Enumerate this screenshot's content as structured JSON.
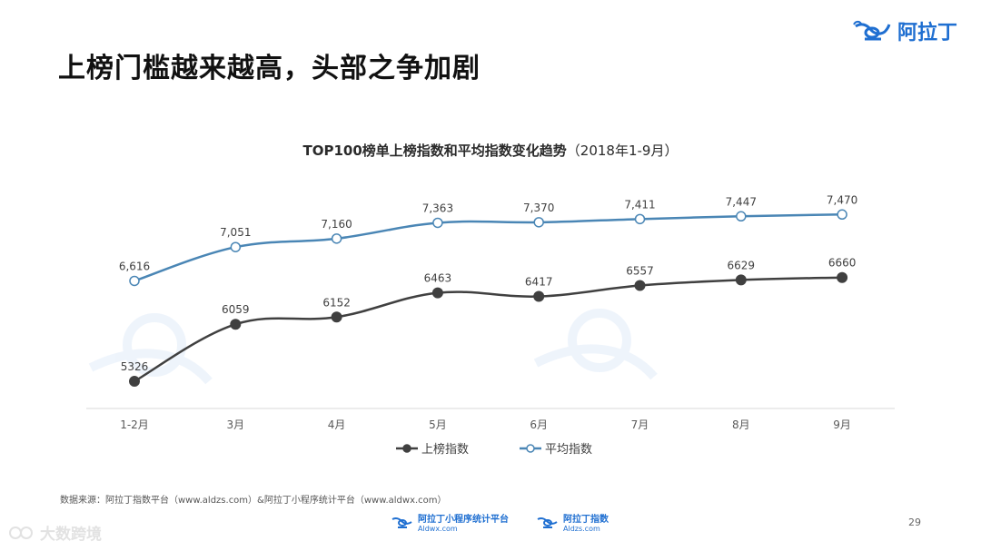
{
  "slide": {
    "title": "上榜门槛越来越高，头部之争加剧",
    "brand": "阿拉丁",
    "page_number": "29",
    "source": "数据来源：阿拉丁指数平台（www.aldzs.com）&阿拉丁小程序统计平台（www.aldwx.com）",
    "footer_logos": [
      {
        "name": "阿拉丁小程序统计平台",
        "sub": "Aldwx.com"
      },
      {
        "name": "阿拉丁指数",
        "sub": "Aldzs.com"
      }
    ],
    "corner_watermark": "大数跨境"
  },
  "chart_data": {
    "type": "line",
    "title": "TOP100榜单上榜指数和平均指数变化趋势",
    "subtitle": "（2018年1-9月）",
    "categories": [
      "1-2月",
      "3月",
      "4月",
      "5月",
      "6月",
      "7月",
      "8月",
      "9月"
    ],
    "series": [
      {
        "name": "平均指数",
        "values": [
          6616,
          7051,
          7160,
          7363,
          7370,
          7411,
          7447,
          7470
        ],
        "labels": [
          "6,616",
          "7,051",
          "7,160",
          "7,363",
          "7,370",
          "7,411",
          "7,447",
          "7,470"
        ],
        "color": "#4a86b5",
        "marker": "open-circle"
      },
      {
        "name": "上榜指数",
        "values": [
          5326,
          6059,
          6152,
          6463,
          6417,
          6557,
          6629,
          6660
        ],
        "labels": [
          "5326",
          "6059",
          "6152",
          "6463",
          "6417",
          "6557",
          "6629",
          "6660"
        ],
        "color": "#404040",
        "marker": "filled-circle"
      }
    ],
    "legend": {
      "position": "bottom",
      "order": [
        "上榜指数",
        "平均指数"
      ]
    },
    "grid": false,
    "ylim": [
      5000,
      7800
    ],
    "colors": {
      "axis": "#d9d9d9",
      "tick_text": "#595959",
      "label_text": "#404040"
    }
  }
}
